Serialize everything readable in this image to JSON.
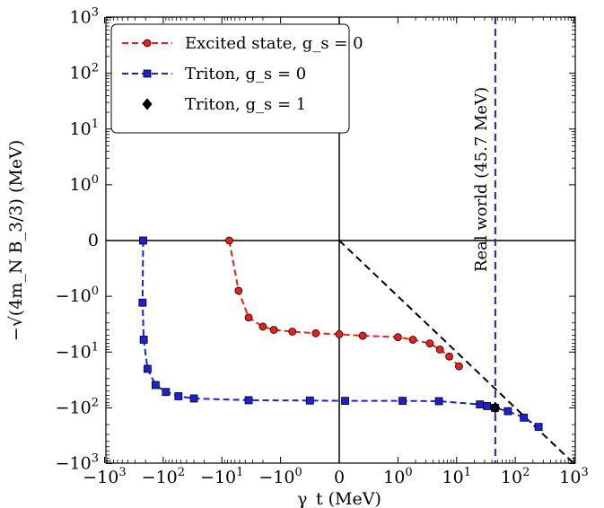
{
  "chart_data": {
    "type": "line",
    "xlabel": "γ_t (MeV)",
    "ylabel": "−√(4m_N B_3/3) (MeV)",
    "xscale": "symlog",
    "yscale": "symlog",
    "xlim": [
      -1000,
      1000
    ],
    "ylim": [
      -1000,
      1000
    ],
    "x_tick_labels": [
      "−10³",
      "−10²",
      "−10¹",
      "−10⁰",
      "0",
      "10⁰",
      "10¹",
      "10²",
      "10³"
    ],
    "y_tick_labels": [
      "10³",
      "10²",
      "10¹",
      "10⁰",
      "0",
      "−10⁰",
      "−10¹",
      "−10²",
      "−10³"
    ],
    "legend_location": "top-left",
    "series": [
      {
        "name": "Excited state, g_s = 0",
        "color": "#e8201b",
        "marker": "circle",
        "linestyle": "dashed",
        "x": [
          -7.5,
          -5.2,
          -3.5,
          -2.0,
          -1.3,
          -0.8,
          -0.4,
          0,
          0.4,
          1.0,
          1.8,
          3.5,
          5.2,
          7.5,
          11.0
        ],
        "y": [
          0,
          -0.9,
          -2.4,
          -3.5,
          -4.0,
          -4.3,
          -4.6,
          -4.8,
          -5.1,
          -5.4,
          -6.0,
          -7.0,
          -9.0,
          -12.0,
          -18.0
        ]
      },
      {
        "name": "Triton, g_s = 0",
        "color": "#1c22d0",
        "marker": "square",
        "linestyle": "dashed",
        "x": [
          -220,
          -225,
          -215,
          -185,
          -135,
          -90,
          -55,
          -30,
          -3.5,
          -0.5,
          0.1,
          1.2,
          5,
          25,
          33,
          45,
          75,
          140,
          250
        ],
        "y": [
          0,
          -1.3,
          -6.0,
          -20.0,
          -39.0,
          -52.0,
          -62.0,
          -68.0,
          -73.0,
          -74.0,
          -75.0,
          -75.0,
          -76.0,
          -87.0,
          -93.0,
          -100.0,
          -115.0,
          -150.0,
          -220.0
        ]
      },
      {
        "name": "Triton, g_s = 1",
        "color": "#000000",
        "marker": "diamond",
        "linestyle": "none",
        "x": [
          45.7
        ],
        "y": [
          -100.0
        ]
      }
    ],
    "reference_lines": [
      {
        "kind": "diagonal",
        "color": "#000000",
        "linestyle": "dashed",
        "from": [
          0,
          0
        ],
        "to": [
          1000,
          -1000
        ]
      },
      {
        "kind": "vertical",
        "color": "#1c22d0",
        "linestyle": "dashed",
        "x": 45.7,
        "label": "Real world (45.7 MeV)"
      }
    ]
  }
}
